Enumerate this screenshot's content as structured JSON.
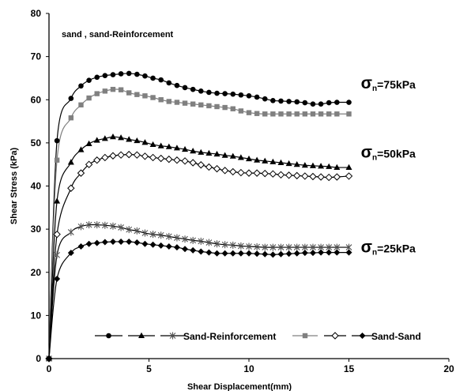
{
  "chart_data": {
    "type": "line",
    "xlabel": "Shear Displacement(mm)",
    "ylabel": "Shear Stress (kPa)",
    "xlim": [
      0,
      20
    ],
    "ylim": [
      0,
      80
    ],
    "xticks": [
      0,
      5,
      10,
      15,
      20
    ],
    "yticks": [
      0,
      10,
      20,
      30,
      40,
      50,
      60,
      70,
      80
    ],
    "grid": false,
    "legend_position": "bottom",
    "annotation": "sand , sand-Reinforcement",
    "curve_labels": [
      {
        "sigma": "σ",
        "sub": "n",
        "rest": "=75kPa",
        "y": 63.5
      },
      {
        "sigma": "σ",
        "sub": "n",
        "rest": "=50kPa",
        "y": 47.5
      },
      {
        "sigma": "σ",
        "sub": "n",
        "rest": "=25kPa",
        "y": 25.5
      }
    ],
    "legend": [
      {
        "marker": "circle",
        "label": ""
      },
      {
        "marker": "triangle",
        "label": ""
      },
      {
        "marker": "star",
        "label": "Sand-Reinforcement"
      },
      {
        "marker": "square",
        "label": ""
      },
      {
        "marker": "diamond-open",
        "label": ""
      },
      {
        "marker": "diamond",
        "label": "Sand-Sand"
      }
    ],
    "series": [
      {
        "marker": "circle",
        "color": "#000000",
        "x": [
          0,
          0.4,
          1.1,
          1.6,
          2.0,
          2.4,
          2.8,
          3.2,
          3.6,
          4.0,
          4.4,
          4.8,
          5.2,
          5.6,
          6.0,
          6.4,
          6.8,
          7.2,
          7.6,
          8.0,
          8.4,
          8.8,
          9.2,
          9.6,
          10.0,
          10.4,
          10.8,
          11.2,
          11.6,
          12.0,
          12.4,
          12.8,
          13.2,
          13.6,
          14.0,
          14.4,
          15.0
        ],
        "y": [
          0,
          50.5,
          60.3,
          63.2,
          64.5,
          65.2,
          65.6,
          65.8,
          66.0,
          66.1,
          65.9,
          65.5,
          65.0,
          64.6,
          63.9,
          63.3,
          62.8,
          62.4,
          62.0,
          61.7,
          61.5,
          61.4,
          61.3,
          61.1,
          60.9,
          60.6,
          60.2,
          59.8,
          59.7,
          59.6,
          59.5,
          59.3,
          59.0,
          59.0,
          59.3,
          59.4,
          59.4
        ]
      },
      {
        "marker": "square",
        "color": "#808080",
        "x": [
          0,
          0.4,
          1.1,
          1.6,
          2.0,
          2.4,
          2.8,
          3.2,
          3.6,
          4.0,
          4.4,
          4.8,
          5.2,
          5.6,
          6.0,
          6.4,
          6.8,
          7.2,
          7.6,
          8.0,
          8.4,
          8.8,
          9.2,
          9.6,
          10.0,
          10.4,
          10.8,
          11.2,
          11.6,
          12.0,
          12.4,
          12.8,
          13.2,
          13.6,
          14.0,
          14.4,
          15.0
        ],
        "y": [
          0,
          46.0,
          55.8,
          58.8,
          60.4,
          61.4,
          62.0,
          62.4,
          62.3,
          61.6,
          61.2,
          60.9,
          60.5,
          60.0,
          59.6,
          59.4,
          59.2,
          59.0,
          58.8,
          58.6,
          58.4,
          58.2,
          57.9,
          57.4,
          57.0,
          56.8,
          56.7,
          56.7,
          56.7,
          56.7,
          56.7,
          56.7,
          56.7,
          56.7,
          56.7,
          56.7,
          56.7
        ]
      },
      {
        "marker": "triangle",
        "color": "#000000",
        "x": [
          0,
          0.4,
          1.1,
          1.6,
          2.0,
          2.4,
          2.8,
          3.2,
          3.6,
          4.0,
          4.4,
          4.8,
          5.2,
          5.6,
          6.0,
          6.4,
          6.8,
          7.2,
          7.6,
          8.0,
          8.4,
          8.8,
          9.2,
          9.6,
          10.0,
          10.4,
          10.8,
          11.2,
          11.6,
          12.0,
          12.4,
          12.8,
          13.2,
          13.6,
          14.0,
          14.4,
          15.0
        ],
        "y": [
          0,
          36.5,
          45.5,
          48.4,
          49.8,
          50.6,
          51.0,
          51.4,
          51.2,
          50.8,
          50.5,
          50.1,
          49.6,
          49.3,
          49.1,
          48.8,
          48.5,
          48.1,
          47.8,
          47.6,
          47.4,
          47.1,
          46.9,
          46.6,
          46.3,
          46.0,
          45.8,
          45.6,
          45.4,
          45.2,
          45.0,
          44.8,
          44.7,
          44.6,
          44.5,
          44.3,
          44.3
        ]
      },
      {
        "marker": "diamond-open",
        "color": "#000000",
        "x": [
          0,
          0.4,
          1.1,
          1.6,
          2.0,
          2.4,
          2.8,
          3.2,
          3.6,
          4.0,
          4.4,
          4.8,
          5.2,
          5.6,
          6.0,
          6.4,
          6.8,
          7.2,
          7.6,
          8.0,
          8.4,
          8.8,
          9.2,
          9.6,
          10.0,
          10.4,
          10.8,
          11.2,
          11.6,
          12.0,
          12.4,
          12.8,
          13.2,
          13.6,
          14.0,
          14.4,
          15.0
        ],
        "y": [
          0,
          28.8,
          39.5,
          43.0,
          45.0,
          46.0,
          46.6,
          47.0,
          47.2,
          47.3,
          47.2,
          46.9,
          46.6,
          46.4,
          46.2,
          46.0,
          45.8,
          45.4,
          44.9,
          44.4,
          44.0,
          43.6,
          43.3,
          43.1,
          43.0,
          43.0,
          42.9,
          42.8,
          42.6,
          42.5,
          42.4,
          42.3,
          42.2,
          42.1,
          42.0,
          42.1,
          42.3
        ]
      },
      {
        "marker": "star",
        "color": "#000000",
        "x": [
          0,
          0.4,
          1.1,
          1.6,
          2.0,
          2.4,
          2.8,
          3.2,
          3.6,
          4.0,
          4.4,
          4.8,
          5.2,
          5.6,
          6.0,
          6.4,
          6.8,
          7.2,
          7.6,
          8.0,
          8.4,
          8.8,
          9.2,
          9.6,
          10.0,
          10.4,
          10.8,
          11.2,
          11.6,
          12.0,
          12.4,
          12.8,
          13.2,
          13.6,
          14.0,
          14.4,
          15.0
        ],
        "y": [
          0,
          24.0,
          29.3,
          30.6,
          31.0,
          31.0,
          30.9,
          30.7,
          30.4,
          29.9,
          29.6,
          29.1,
          28.8,
          28.6,
          28.3,
          28.0,
          27.7,
          27.4,
          27.2,
          26.9,
          26.6,
          26.4,
          26.3,
          26.1,
          26.0,
          25.9,
          25.8,
          25.8,
          25.8,
          25.8,
          25.8,
          25.8,
          25.8,
          25.8,
          25.8,
          25.8,
          25.8
        ]
      },
      {
        "marker": "diamond",
        "color": "#000000",
        "x": [
          0,
          0.4,
          1.1,
          1.6,
          2.0,
          2.4,
          2.8,
          3.2,
          3.6,
          4.0,
          4.4,
          4.8,
          5.2,
          5.6,
          6.0,
          6.4,
          6.8,
          7.2,
          7.6,
          8.0,
          8.4,
          8.8,
          9.2,
          9.6,
          10.0,
          10.4,
          10.8,
          11.2,
          11.6,
          12.0,
          12.4,
          12.8,
          13.2,
          13.6,
          14.0,
          14.4,
          15.0
        ],
        "y": [
          0,
          18.5,
          24.5,
          26.0,
          26.6,
          26.8,
          27.0,
          27.1,
          27.1,
          27.1,
          26.9,
          26.6,
          26.4,
          26.2,
          26.0,
          25.8,
          25.4,
          25.1,
          24.8,
          24.6,
          24.4,
          24.4,
          24.4,
          24.4,
          24.4,
          24.3,
          24.2,
          24.1,
          24.2,
          24.3,
          24.4,
          24.5,
          24.5,
          24.6,
          24.6,
          24.6,
          24.6
        ]
      }
    ]
  }
}
